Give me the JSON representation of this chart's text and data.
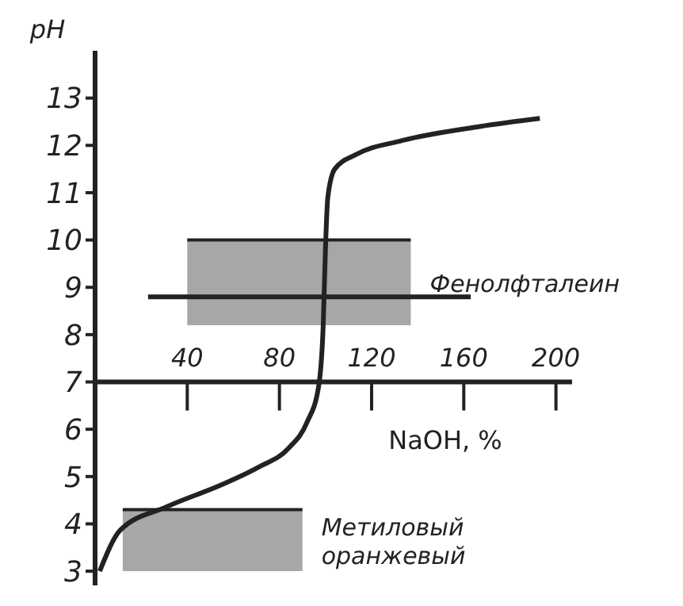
{
  "chart_data": {
    "type": "line",
    "xlabel": "NaOH, %",
    "ylabel": "pH",
    "xlim": [
      0,
      207
    ],
    "xticks": [
      40,
      80,
      120,
      160,
      200
    ],
    "ylim": [
      2.7,
      14
    ],
    "yticks": [
      3,
      4,
      5,
      6,
      7,
      8,
      9,
      10,
      11,
      12,
      13
    ],
    "ref_lines": [
      {
        "axis": "y",
        "value": 7
      }
    ],
    "marker": "none",
    "grid": false,
    "legend": false,
    "series": [
      {
        "type": "line",
        "name": "Фенолфталеин",
        "color": "#222222",
        "x": [
          40,
          137
        ],
        "lower": [
          8.2,
          8.2
        ],
        "upper": [
          10,
          10
        ],
        "values": [
          10,
          10
        ]
      },
      {
        "type": "line",
        "name": "Метиловый оранжевый",
        "color": "#222222",
        "x": [
          12,
          90
        ],
        "lower": [
          3.0,
          3.0
        ],
        "upper": [
          4.3,
          4.3
        ],
        "values": [
          4.3,
          4.3
        ]
      },
      {
        "type": "line",
        "color": "#222222",
        "x": [
          23,
          163
        ],
        "values": [
          8.8,
          8.8
        ]
      },
      {
        "color": "#222222",
        "x": [
          2,
          11,
          31,
          56,
          71,
          84,
          92,
          97,
          99,
          100,
          101,
          104,
          113,
          133,
          167,
          193
        ],
        "values": [
          3.0,
          3.87,
          4.36,
          4.85,
          5.2,
          5.6,
          6.15,
          6.9,
          8.2,
          9.85,
          10.9,
          11.5,
          11.8,
          12.1,
          12.4,
          12.57
        ]
      }
    ]
  }
}
